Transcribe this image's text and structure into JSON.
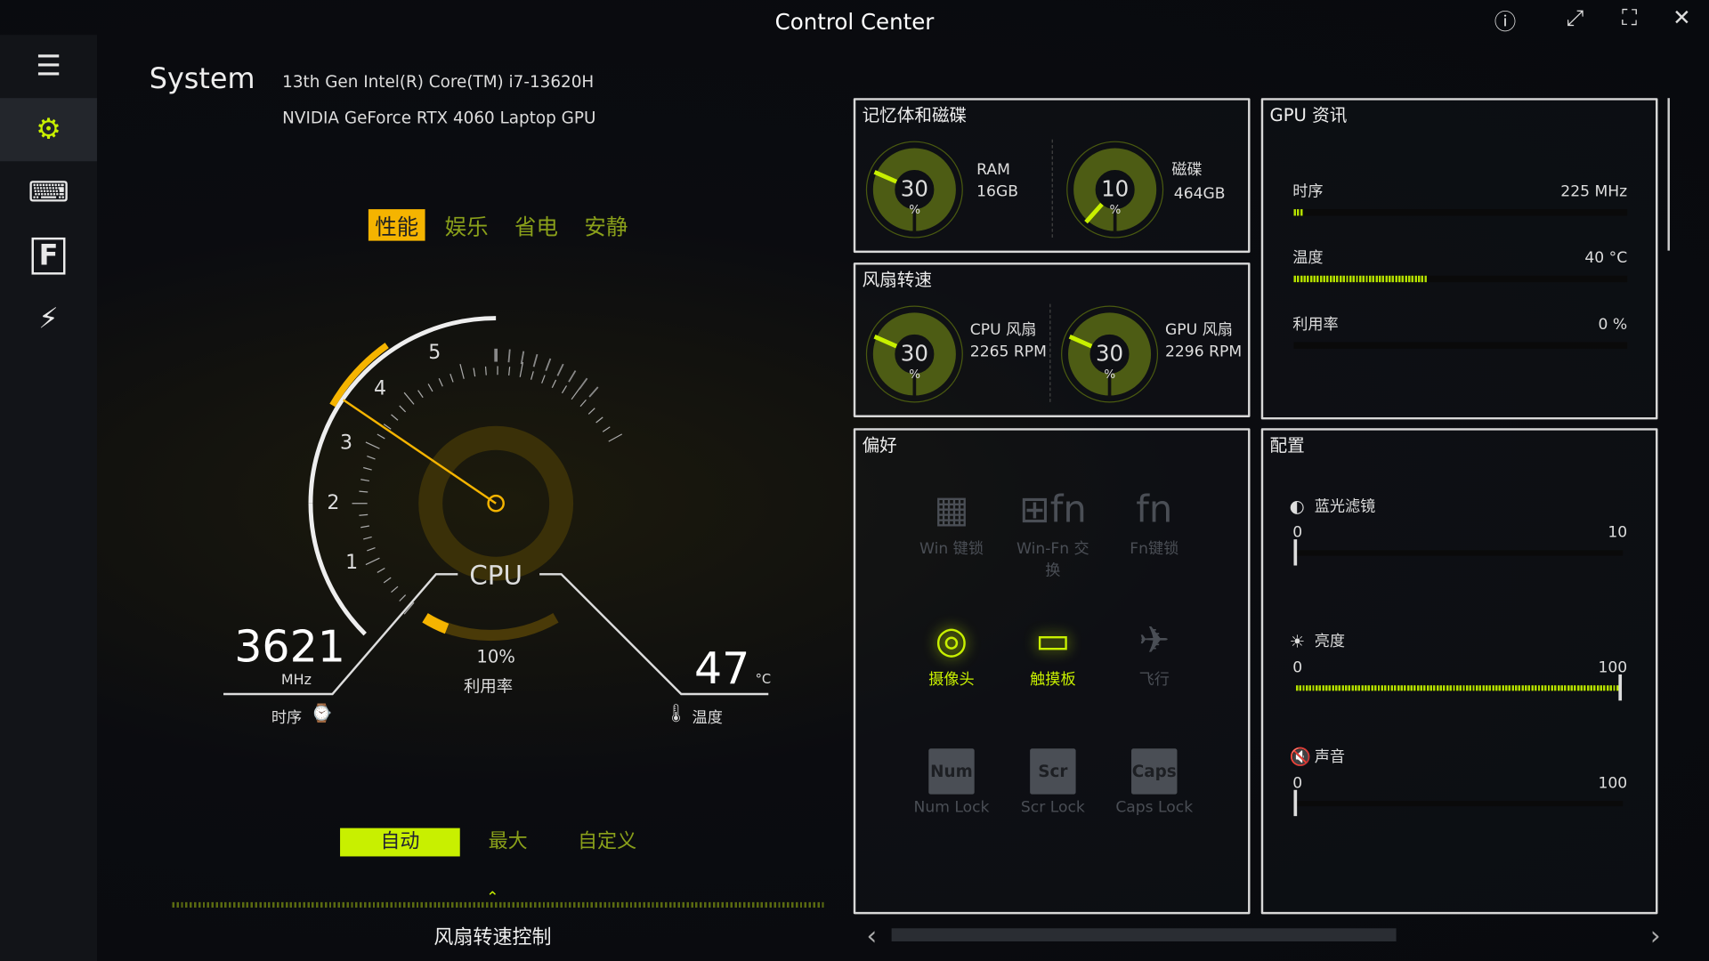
{
  "window": {
    "title": "Control Center"
  },
  "sidebar": {
    "items": [
      {
        "name": "menu"
      },
      {
        "name": "system"
      },
      {
        "name": "keyboard"
      },
      {
        "name": "f-key"
      },
      {
        "name": "battery"
      }
    ]
  },
  "system": {
    "heading": "System",
    "cpu": "13th Gen Intel(R) Core(TM) i7-13620H",
    "gpu": "NVIDIA GeForce RTX 4060 Laptop GPU"
  },
  "modes": {
    "items": [
      "性能",
      "娱乐",
      "省电",
      "安静"
    ],
    "selected": "性能"
  },
  "gauge": {
    "label": "CPU",
    "ticks": [
      "1",
      "2",
      "3",
      "4",
      "5"
    ],
    "clock_value": "3621",
    "clock_unit": "MHz",
    "clock_label": "时序",
    "usage_value": "10%",
    "usage_label": "利用率",
    "temp_value": "47",
    "temp_unit": "°C",
    "temp_label": "温度",
    "accent": "#f5b400"
  },
  "fan_control": {
    "buttons": [
      "自动",
      "最大",
      "自定义"
    ],
    "selected": "自动",
    "label": "风扇转速控制"
  },
  "memory": {
    "title": "记忆体和磁碟",
    "ram": {
      "value": "30",
      "unit": "%",
      "label": "RAM",
      "size": "16GB"
    },
    "disk": {
      "value": "10",
      "unit": "%",
      "label": "磁碟",
      "size": "464GB"
    }
  },
  "fans": {
    "title": "风扇转速",
    "cpu": {
      "value": "30",
      "unit": "%",
      "label": "CPU 风扇",
      "rpm": "2265 RPM"
    },
    "gpu": {
      "value": "30",
      "unit": "%",
      "label": "GPU 风扇",
      "rpm": "2296 RPM"
    }
  },
  "gpu_info": {
    "title": "GPU 资讯",
    "rows": [
      {
        "label": "时序",
        "value": "225 MHz",
        "fill": 0.03
      },
      {
        "label": "温度",
        "value": "40 °C",
        "fill": 0.4
      },
      {
        "label": "利用率",
        "value": "0 %",
        "fill": 0
      }
    ]
  },
  "preferences": {
    "title": "偏好",
    "items": [
      {
        "label": "Win 键锁",
        "on": false
      },
      {
        "label": "Win-Fn 交换",
        "on": false
      },
      {
        "label": "Fn键锁",
        "on": false
      },
      {
        "label": "摄像头",
        "on": true
      },
      {
        "label": "触摸板",
        "on": true
      },
      {
        "label": "飞行",
        "on": false
      },
      {
        "label": "Num Lock",
        "key": "Num",
        "on": false
      },
      {
        "label": "Scr Lock",
        "key": "Scr",
        "on": false
      },
      {
        "label": "Caps Lock",
        "key": "Caps",
        "on": false
      }
    ]
  },
  "config": {
    "title": "配置",
    "sliders": [
      {
        "label": "蓝光滤镜",
        "min": "0",
        "max": "10",
        "value": 0
      },
      {
        "label": "亮度",
        "min": "0",
        "max": "100",
        "value": 100
      },
      {
        "label": "声音",
        "min": "0",
        "max": "100",
        "value": 0
      }
    ]
  },
  "colors": {
    "accent_green": "#c8f000",
    "accent_orange": "#f5b400"
  }
}
